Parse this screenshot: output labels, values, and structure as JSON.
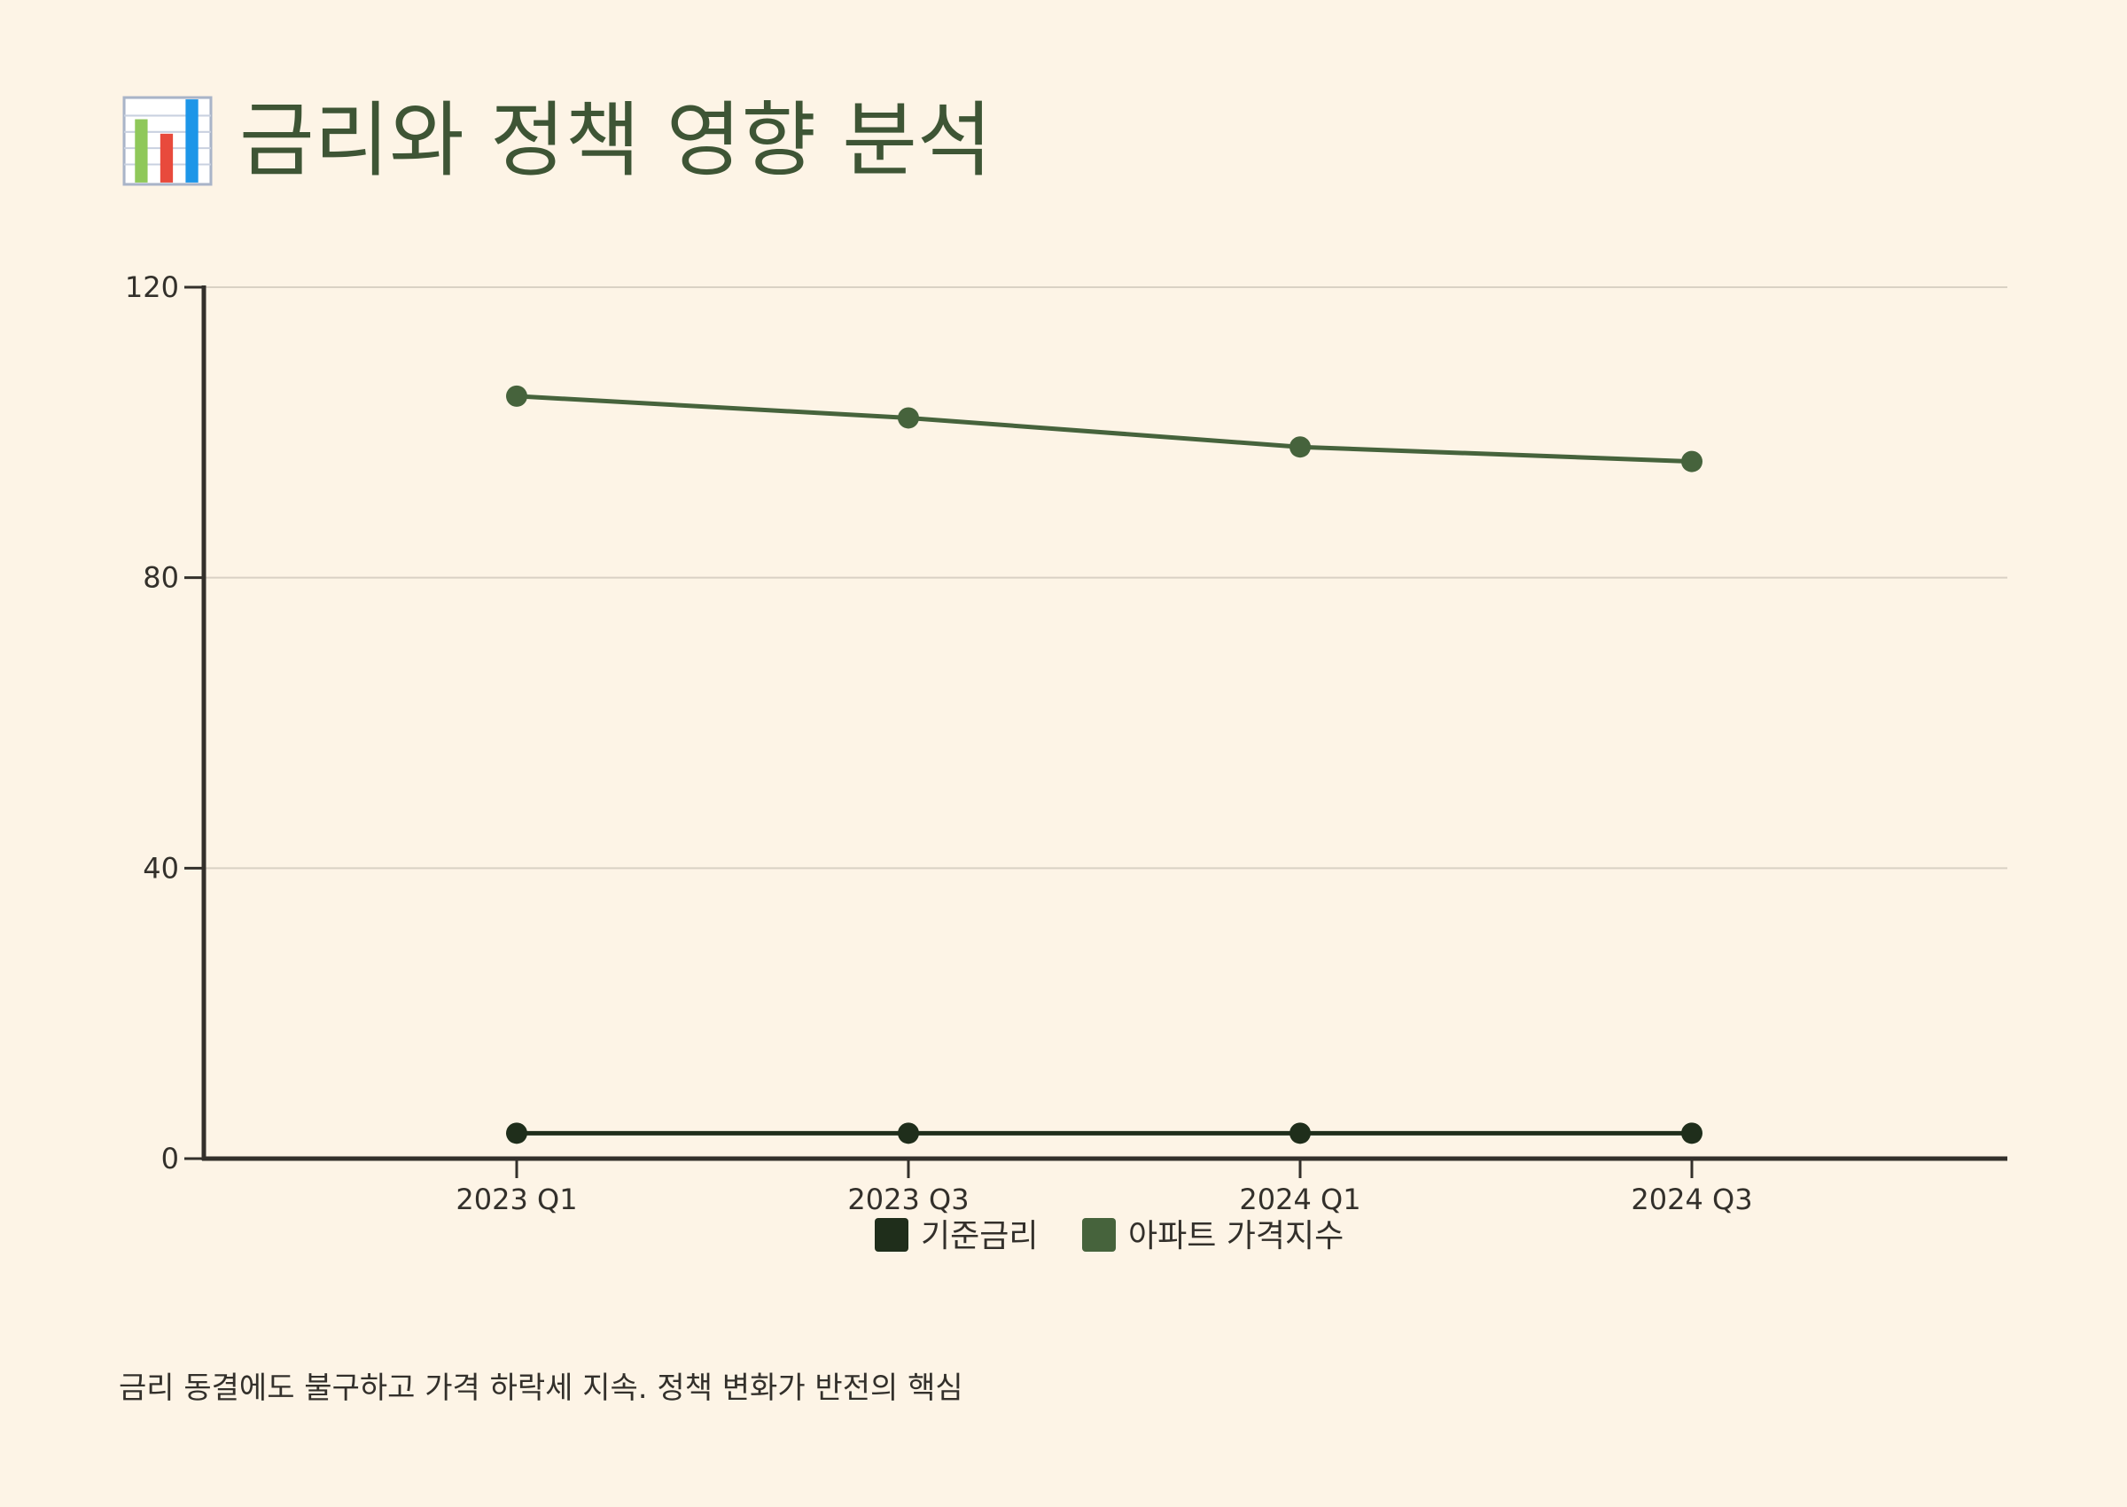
{
  "header": {
    "title": "금리와 정책 영향 분석",
    "icon": "bar-chart-icon"
  },
  "chart_data": {
    "type": "line",
    "categories": [
      "2023 Q1",
      "2023 Q3",
      "2024 Q1",
      "2024 Q3"
    ],
    "series": [
      {
        "name": "기준금리",
        "values": [
          3.5,
          3.5,
          3.5,
          3.5
        ],
        "color": "#1f2e1b"
      },
      {
        "name": "아파트 가격지수",
        "values": [
          105,
          102,
          98,
          96
        ],
        "color": "#46633c"
      }
    ],
    "yticks": [
      "0",
      "40",
      "80",
      "120"
    ],
    "ylim": [
      0,
      120
    ],
    "grid": true,
    "legend": "bottom-center"
  },
  "caption": "금리 동결에도 불구하고 가격 하락세 지속. 정책 변화가 반전의 핵심",
  "colors": {
    "background": "#fdf4e6",
    "title": "#3e5535",
    "axis": "#33302b",
    "grid": "#d9d1c4"
  }
}
